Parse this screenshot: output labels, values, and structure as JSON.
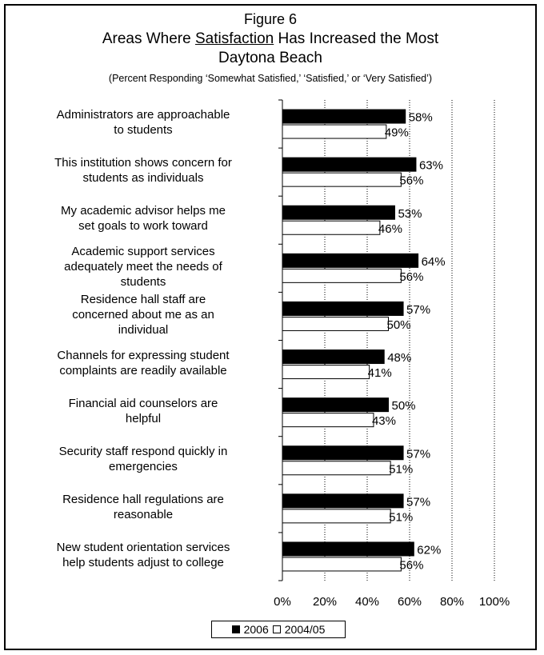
{
  "figure_label": "Figure 6",
  "title_before": "Areas Where ",
  "title_underlined": "Satisfaction",
  "title_after": " Has Increased the Most",
  "subtitle": "Daytona Beach",
  "note": "(Percent Responding ‘Somewhat Satisfied,’ ‘Satisfied,’ or ‘Very Satisfied’)",
  "chart_data": {
    "type": "bar",
    "orientation": "horizontal",
    "categories": [
      [
        "Administrators are approachable",
        "to students"
      ],
      [
        "This institution shows concern for",
        "students as individuals"
      ],
      [
        "My academic advisor helps me",
        "set goals to work toward"
      ],
      [
        "Academic support services",
        "adequately meet the needs of",
        "students"
      ],
      [
        "Residence hall staff are",
        "concerned about me as an",
        "individual"
      ],
      [
        "Channels for expressing student",
        "complaints are readily available"
      ],
      [
        "Financial aid counselors are",
        "helpful"
      ],
      [
        "Security staff respond quickly in",
        "emergencies"
      ],
      [
        "Residence hall regulations are",
        "reasonable"
      ],
      [
        "New student orientation services",
        "help students adjust to college"
      ]
    ],
    "series": [
      {
        "name": "2006",
        "color": "#000000",
        "values": [
          58,
          63,
          53,
          64,
          57,
          48,
          50,
          57,
          57,
          62
        ],
        "labels": [
          "58%",
          "63%",
          "53%",
          "64%",
          "57%",
          "48%",
          "50%",
          "57%",
          "57%",
          "62%"
        ]
      },
      {
        "name": "2004/05",
        "color": "#ffffff",
        "values": [
          49,
          56,
          46,
          56,
          50,
          41,
          43,
          51,
          51,
          56
        ],
        "labels": [
          "49%",
          "56%",
          "46%",
          "56%",
          "50%",
          "41%",
          "43%",
          "51%",
          "51%",
          "56%"
        ]
      }
    ],
    "xlim": [
      0,
      100
    ],
    "x_ticks": [
      0,
      20,
      40,
      60,
      80,
      100
    ],
    "x_tick_labels": [
      "0%",
      "20%",
      "40%",
      "60%",
      "80%",
      "100%"
    ],
    "grid": "vertical dotted",
    "legend_position": "bottom-center"
  }
}
